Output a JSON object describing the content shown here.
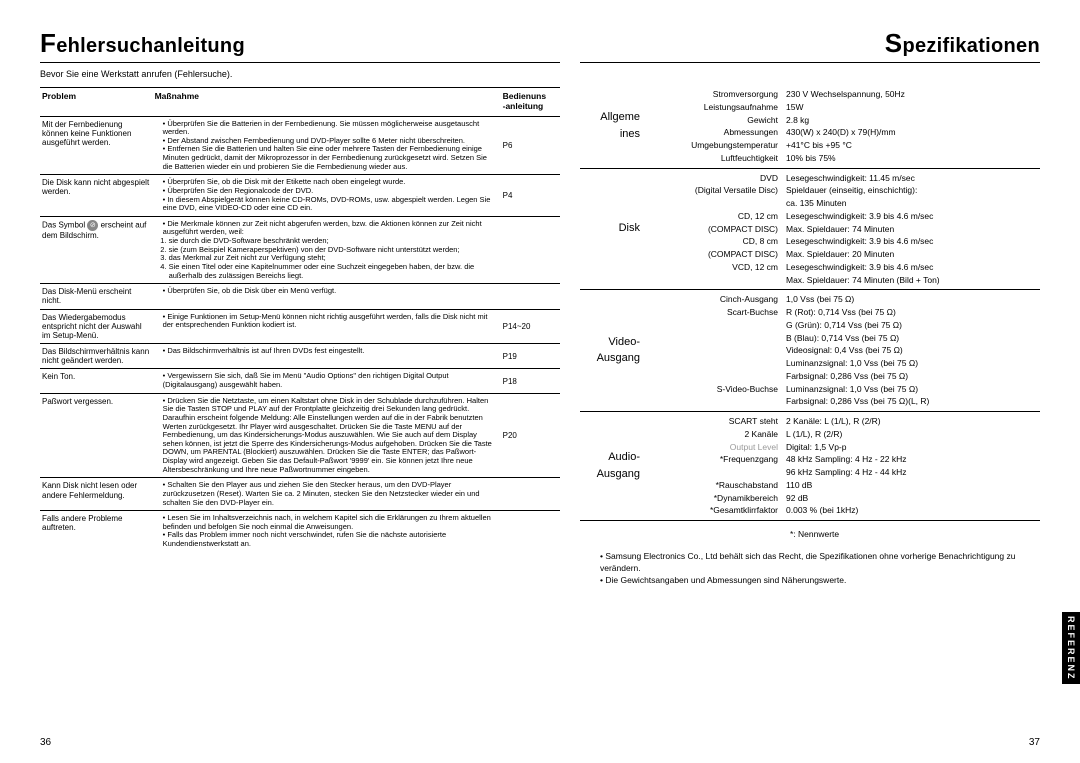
{
  "left": {
    "title_initial": "F",
    "title_rest": "ehlersuchanleitung",
    "intro": "Bevor Sie eine Werkstatt anrufen (Fehlersuche).",
    "headers": {
      "problem": "Problem",
      "action": "Maßnahme",
      "ref1": "Bedienuns",
      "ref2": "-anleitung"
    },
    "rows": [
      {
        "problem": "Mit der Fernbedienung können keine Funktionen ausgeführt werden.",
        "items": [
          "Überprüfen Sie die Batterien in der Fernbedienung. Sie müssen möglicherweise ausgetauscht werden.",
          "Der Abstand zwischen Fernbedienung und DVD-Player sollte 6 Meter nicht überschreiten.",
          "Entfernen Sie die Batterien und halten Sie eine oder mehrere Tasten der Fernbedienung einige Minuten gedrückt, damit der Mikroprozessor in der Fernbedienung zurückgesetzt wird. Setzen Sie die Batterien wieder ein und probieren Sie die Fernbedienung wieder aus."
        ],
        "ref": "P6"
      },
      {
        "problem": "Die Disk kann nicht abgespielt werden.",
        "items": [
          "Überprüfen Sie, ob die Disk mit der Etikette nach oben eingelegt wurde.",
          "Überprüfen Sie den Regionalcode der DVD.",
          "In diesem Abspielgerät können keine CD-ROMs, DVD-ROMs, usw. abgespielt werden. Legen Sie eine DVD, eine VIDEO-CD oder eine CD ein."
        ],
        "ref": "P4"
      },
      {
        "problem_pre": "Das Symbol ",
        "problem_post": " erscheint auf dem Bildschirm.",
        "items": [
          "Die Merkmale können zur Zeit nicht abgerufen werden, bzw. die Aktionen können zur Zeit nicht ausgeführt werden, weil:"
        ],
        "ol": [
          "sie durch die DVD-Software beschränkt werden;",
          "sie (zum Beispiel Kameraperspektiven) von der DVD-Software nicht unterstützt werden;",
          "das Merkmal zur Zeit nicht zur Verfügung steht;",
          "Sie einen Titel oder eine Kapitelnummer oder eine Suchzeit eingegeben haben, der bzw. die außerhalb des zulässigen Bereichs liegt."
        ],
        "ref": ""
      },
      {
        "problem": "Das Disk-Menü erscheint nicht.",
        "items": [
          "Überprüfen Sie, ob die Disk über ein Menü verfügt."
        ],
        "ref": ""
      },
      {
        "problem": "Das Wiedergabemodus entspricht nicht der Auswahl im Setup-Menü.",
        "items": [
          "Einige Funktionen im Setup-Menü können nicht richtig ausgeführt werden, falls die Disk nicht mit der entsprechenden Funktion kodiert ist."
        ],
        "ref": "P14~20"
      },
      {
        "problem": "Das Bildschirmverhältnis kann nicht geändert werden.",
        "items": [
          "Das Bildschirmverhältnis ist auf Ihren DVDs fest eingestellt."
        ],
        "ref": "P19"
      },
      {
        "problem": "Kein Ton.",
        "items": [
          "Vergewissern Sie sich, daß Sie im Menü \"Audio Options\" den richtigen Digital Output (Digitalausgang) ausgewählt haben."
        ],
        "ref": "P18"
      },
      {
        "problem": "Paßwort vergessen.",
        "items": [
          "Drücken Sie die Netztaste, um einen Kaltstart ohne Disk in der Schublade durchzuführen. Halten Sie die Tasten STOP und PLAY auf der Frontplatte gleichzeitig drei Sekunden lang gedrückt. Daraufhin erscheint folgende Meldung: Alle Einstellungen werden auf die in der Fabrik benutzten Werten zurückgesetzt. Ihr Player wird ausgeschaltet. Drücken Sie die Taste MENU auf der Fernbedienung, um das Kindersicherungs-Modus auszuwählen. Wie Sie auch auf dem Display sehen können, ist jetzt die Sperre des Kindersicherungs-Modus aufgehoben. Drücken Sie die Taste DOWN, um PARENTAL (Blockiert) auszuwählen. Drücken Sie die Taste ENTER; das Paßwort-Display wird angezeigt. Geben Sie das Default-Paßwort '9999' ein. Sie können jetzt Ihre neue Altersbeschränkung und Ihre neue Paßwortnummer eingeben."
        ],
        "ref": "P20"
      },
      {
        "problem": "Kann Disk nicht lesen oder andere Fehlermeldung.",
        "items": [
          "Schalten Sie den Player aus und ziehen Sie den Stecker heraus, um den DVD-Player zurückzusetzen (Reset). Warten Sie ca. 2 Minuten, stecken Sie den Netzstecker wieder ein und schalten Sie den DVD-Player ein."
        ],
        "ref": ""
      },
      {
        "problem": "Falls andere Probleme auftreten.",
        "items": [
          "Lesen Sie im Inhaltsverzeichnis nach, in welchem Kapitel sich die Erklärungen zu Ihrem aktuellen befinden und befolgen Sie noch einmal die Anweisungen.",
          "Falls das Problem immer noch nicht verschwindet, rufen Sie die nächste autorisierte Kundendienstwerkstatt an."
        ],
        "ref": "",
        "no_border": true
      }
    ],
    "page_num": "36"
  },
  "right": {
    "title_initial": "S",
    "title_rest": "pezifikationen",
    "groups": [
      {
        "name": "Allgemeines",
        "rows": [
          {
            "label": "Stromversorgung",
            "value": "230 V Wechselspannung, 50Hz"
          },
          {
            "label": "Leistungsaufnahme",
            "value": "15W"
          },
          {
            "label": "Gewicht",
            "value": "2.8 kg"
          },
          {
            "label": "Abmessungen",
            "value": "430(W) x 240(D) x 79(H)/mm"
          },
          {
            "label": "Umgebungstemperatur",
            "value": "+41°C bis +95 °C"
          },
          {
            "label": "Luftfeuchtigkeit",
            "value": "10% bis 75%"
          }
        ]
      },
      {
        "name": "Disk",
        "rows": [
          {
            "label": "DVD",
            "value": "Lesegeschwindigkeit: 11.45 m/sec"
          },
          {
            "label": "(Digital Versatile Disc)",
            "value": "Spieldauer (einseitig, einschichtig):"
          },
          {
            "label": "",
            "value": "ca. 135 Minuten"
          },
          {
            "label": "CD, 12 cm",
            "value": "Lesegeschwindigkeit: 3.9 bis 4.6 m/sec"
          },
          {
            "label": "(COMPACT DISC)",
            "value": "Max. Spieldauer: 74 Minuten"
          },
          {
            "label": "CD, 8 cm",
            "value": "Lesegeschwindigkeit: 3.9 bis 4.6 m/sec"
          },
          {
            "label": "(COMPACT DISC)",
            "value": "Max. Spieldauer: 20 Minuten"
          },
          {
            "label": "VCD, 12 cm",
            "value": "Lesegeschwindigkeit: 3.9 bis 4.6 m/sec"
          },
          {
            "label": "",
            "value": "Max. Spieldauer: 74 Minuten (Bild + Ton)"
          }
        ]
      },
      {
        "name": "Video-Ausgang",
        "rows": [
          {
            "label": "Cinch-Ausgang",
            "value": "1,0 Vss (bei 75 Ω)"
          },
          {
            "label": "Scart-Buchse",
            "value": "R (Rot): 0,714 Vss (bei 75 Ω)"
          },
          {
            "label": "",
            "value": "G (Grün): 0,714 Vss (bei 75 Ω)"
          },
          {
            "label": "",
            "value": "B (Blau): 0,714 Vss (bei 75 Ω)"
          },
          {
            "label": "",
            "value": "Videosignal: 0,4 Vss (bei 75 Ω)"
          },
          {
            "label": "",
            "value": "Luminanzsignal: 1,0 Vss (bei 75 Ω)"
          },
          {
            "label": "",
            "value": "Farbsignal: 0,286 Vss (bei 75 Ω)"
          },
          {
            "label": "S-Video-Buchse",
            "value": "Luminanzsignal: 1,0 Vss (bei 75 Ω)"
          },
          {
            "label": "",
            "value": "Farbsignal: 0,286 Vss (bei 75 Ω)(L, R)"
          }
        ]
      },
      {
        "name": "Audio-Ausgang",
        "rows": [
          {
            "label": "SCART steht",
            "value": "2 Kanäle: L (1/L), R (2/R)"
          },
          {
            "label": "2 Kanäle",
            "value": "L (1/L), R (2/R)"
          },
          {
            "label": "Output Level",
            "value": "Digital: 1,5 Vp-p",
            "gray": true
          },
          {
            "label": "*Frequenzgang",
            "value": "48 kHz Sampling: 4 Hz - 22 kHz"
          },
          {
            "label": "",
            "value": "96 kHz Sampling: 4 Hz - 44 kHz"
          },
          {
            "label": "*Rauschabstand",
            "value": "110 dB"
          },
          {
            "label": "*Dynamikbereich",
            "value": "92 dB"
          },
          {
            "label": "*Gesamtklirrfaktor",
            "value": "0.003 % (bei 1kHz)"
          }
        ]
      }
    ],
    "nennwerte": "*: Nennwerte",
    "notes": [
      "Samsung Electronics Co., Ltd behält sich das Recht, die Spezifikationen ohne vorherige Benachrichtigung zu verändern.",
      "Die Gewichtsangaben und Abmessungen sind Näherungswerte."
    ],
    "page_num": "37",
    "tab": "REFERENZ"
  }
}
